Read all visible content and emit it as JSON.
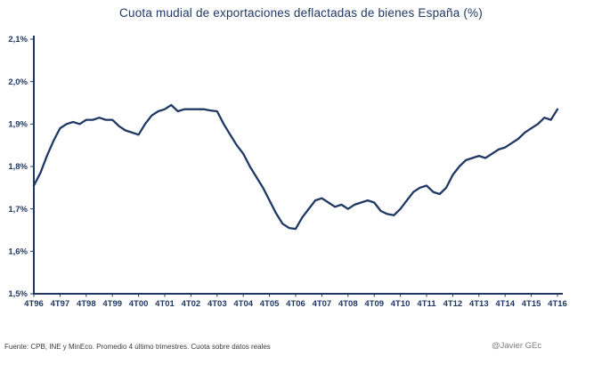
{
  "chart_data": {
    "type": "line",
    "title": "Cuota mudial de exportaciones deflactadas de bienes España  (%)",
    "xlabel": "",
    "ylabel": "",
    "ylim": [
      1.5,
      2.1
    ],
    "grid": false,
    "legend_position": "none",
    "axis_color": "#1F3864",
    "tick_label_color": "#1F3864",
    "x_tick_labels": [
      "4T96",
      "4T97",
      "4T98",
      "4T99",
      "4T00",
      "4T01",
      "4T02",
      "4T03",
      "4T04",
      "4T05",
      "4T06",
      "4T07",
      "4T08",
      "4T09",
      "4T10",
      "4T11",
      "4T12",
      "4T13",
      "4T14",
      "4T15",
      "4T16"
    ],
    "x_tick_every": 4,
    "y_ticks": {
      "labels": [
        "2,1%",
        "2,0%",
        "1,9%",
        "1,8%",
        "1,7%",
        "1,6%",
        "1,5%"
      ],
      "values": [
        2.1,
        2.0,
        1.9,
        1.8,
        1.7,
        1.6,
        1.5
      ]
    },
    "series": [
      {
        "color": "#1F3864",
        "x_start": "4T96",
        "x_end": "4T16",
        "frequency": "quarterly",
        "values": [
          1.755,
          1.785,
          1.825,
          1.86,
          1.89,
          1.9,
          1.905,
          1.9,
          1.91,
          1.91,
          1.915,
          1.91,
          1.91,
          1.895,
          1.885,
          1.88,
          1.875,
          1.9,
          1.92,
          1.93,
          1.935,
          1.945,
          1.93,
          1.935,
          1.935,
          1.935,
          1.935,
          1.932,
          1.93,
          1.9,
          1.875,
          1.85,
          1.83,
          1.8,
          1.775,
          1.75,
          1.72,
          1.69,
          1.665,
          1.655,
          1.653,
          1.68,
          1.7,
          1.72,
          1.725,
          1.715,
          1.705,
          1.71,
          1.7,
          1.71,
          1.715,
          1.72,
          1.715,
          1.695,
          1.688,
          1.685,
          1.7,
          1.72,
          1.74,
          1.75,
          1.755,
          1.74,
          1.735,
          1.75,
          1.78,
          1.8,
          1.815,
          1.82,
          1.825,
          1.82,
          1.83,
          1.84,
          1.845,
          1.855,
          1.865,
          1.88,
          1.89,
          1.9,
          1.915,
          1.91,
          1.935
        ]
      }
    ]
  },
  "footer": {
    "source": "Fuente: CPB,  INE y MinEco. Promedio  4 último trimestres. Cuota sobre datos reales",
    "credit": "@Javier GEc"
  }
}
